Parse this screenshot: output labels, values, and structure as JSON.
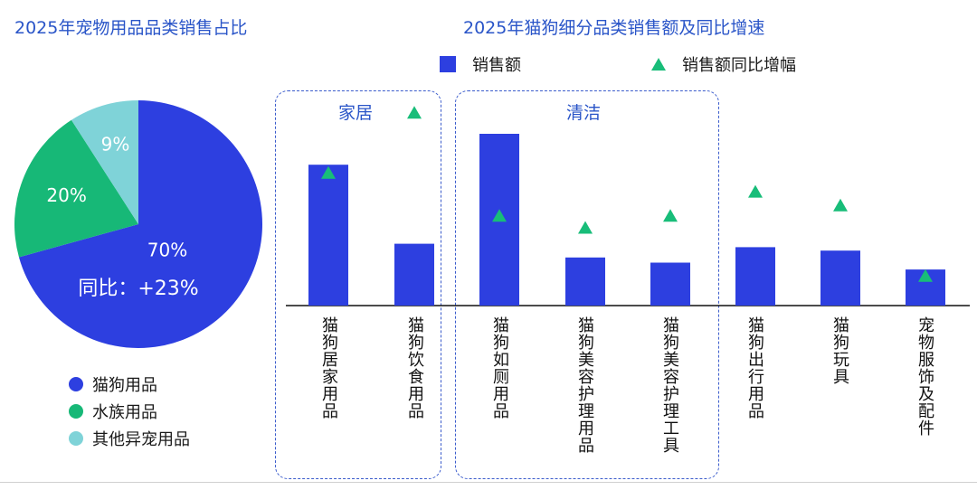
{
  "pie_title": "2025年宠物用品品类销售占比",
  "bar_title": "2025年猫狗细分品类销售额及同比增速",
  "chart_data": [
    {
      "type": "pie",
      "title": "2025年宠物用品品类销售占比",
      "slices": [
        {
          "name": "猫狗用品",
          "value": 70,
          "label": "70%",
          "color": "#2d3fe0"
        },
        {
          "name": "水族用品",
          "value": 20,
          "label": "20%",
          "color": "#17b877"
        },
        {
          "name": "其他异宠用品",
          "value": 9,
          "label": "9%",
          "color": "#7fd3d8"
        }
      ],
      "annotation": "同比：+23%"
    },
    {
      "type": "bar",
      "title": "2025年猫狗细分品类销售额及同比增速",
      "categories": [
        "猫狗居家用品",
        "猫狗饮食用品",
        "猫狗如厕用品",
        "猫狗美容护理用品",
        "猫狗美容护理工具",
        "猫狗出行用品",
        "猫狗玩具",
        "宠物服饰及配件"
      ],
      "series": [
        {
          "name": "销售额",
          "marker": "bar",
          "color": "#2d3fe0",
          "values": [
            82,
            36,
            100,
            28,
            25,
            34,
            32,
            21
          ]
        },
        {
          "name": "销售额同比增幅",
          "marker": "triangle",
          "color": "#18bd79",
          "values": [
            77,
            112,
            52,
            45,
            52,
            66,
            58,
            17
          ]
        }
      ],
      "groups": [
        {
          "label": "家居",
          "categories": [
            "猫狗居家用品",
            "猫狗饮食用品"
          ]
        },
        {
          "label": "清洁",
          "categories": [
            "猫狗如厕用品",
            "猫狗美容护理用品",
            "猫狗美容护理工具"
          ]
        }
      ],
      "ylim": [
        0,
        120
      ],
      "axes": false,
      "grid": false
    }
  ]
}
